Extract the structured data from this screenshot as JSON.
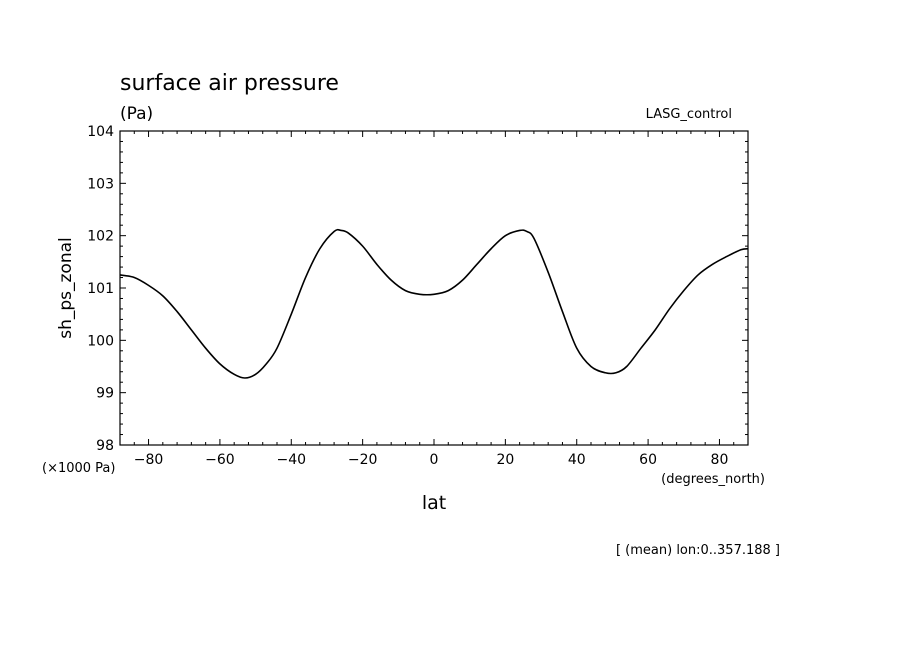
{
  "chart_data": {
    "type": "line",
    "title": "surface air pressure",
    "units": "(Pa)",
    "dataset_label": "LASG_control",
    "ylabel": "sh_ps_zonal",
    "xlabel": "lat",
    "y_scale_note": "(×1000 Pa)",
    "x_units": "(degrees_north)",
    "footnote": "[ (mean) lon:0..357.188 ]",
    "xlim": [
      -88,
      88
    ],
    "ylim": [
      98,
      104
    ],
    "x_ticks": [
      -80,
      -60,
      -40,
      -20,
      0,
      20,
      40,
      60,
      80
    ],
    "x_tick_labels": [
      "−80",
      "−60",
      "−40",
      "−20",
      "0",
      "20",
      "40",
      "60",
      "80"
    ],
    "y_ticks": [
      98,
      99,
      100,
      101,
      102,
      103,
      104
    ],
    "y_tick_labels": [
      "98",
      "99",
      "100",
      "101",
      "102",
      "103",
      "104"
    ],
    "grid": false,
    "series": [
      {
        "x": [
          -88,
          -84,
          -80,
          -76,
          -72,
          -68,
          -64,
          -60,
          -56,
          -53,
          -50,
          -47,
          -44,
          -40,
          -36,
          -32,
          -28,
          -26,
          -24,
          -20,
          -16,
          -12,
          -8,
          -4,
          0,
          4,
          8,
          12,
          16,
          20,
          24,
          26,
          28,
          32,
          36,
          40,
          44,
          48,
          51,
          54,
          58,
          62,
          66,
          70,
          74,
          78,
          82,
          86,
          88
        ],
        "y": [
          101.25,
          101.2,
          101.05,
          100.85,
          100.55,
          100.2,
          99.85,
          99.55,
          99.35,
          99.28,
          99.35,
          99.55,
          99.85,
          100.5,
          101.2,
          101.75,
          102.08,
          102.1,
          102.05,
          101.8,
          101.45,
          101.15,
          100.95,
          100.88,
          100.88,
          100.95,
          101.15,
          101.45,
          101.75,
          102.0,
          102.1,
          102.08,
          101.95,
          101.3,
          100.55,
          99.85,
          99.5,
          99.38,
          99.38,
          99.5,
          99.85,
          100.2,
          100.6,
          100.95,
          101.25,
          101.45,
          101.6,
          101.73,
          101.75
        ]
      }
    ]
  }
}
